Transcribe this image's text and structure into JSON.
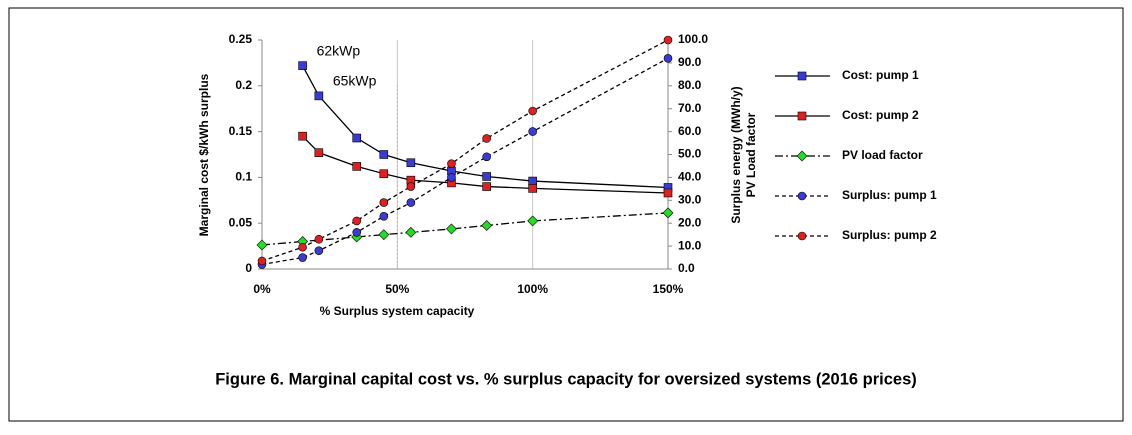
{
  "chart_data": {
    "type": "line",
    "caption": "Figure 6. Marginal capital cost vs. % surplus capacity for oversized systems (2016 prices)",
    "xlabel": "% Surplus system capacity",
    "ylabel": "Marginal cost $/kWh surplus",
    "y2label": [
      "Surplus energy (MWh/y)",
      "PV Load factor"
    ],
    "annotations": [
      {
        "text": "62kWp",
        "x": 15,
        "y": 0.222
      },
      {
        "text": "65kWp",
        "x": 21,
        "y": 0.189
      }
    ],
    "reference_line": {
      "x": 50,
      "color": "#f0b080"
    },
    "xlim": [
      0,
      150
    ],
    "xticks": [
      {
        "value": 0,
        "label": "0%"
      },
      {
        "value": 50,
        "label": "50%"
      },
      {
        "value": 100,
        "label": "100%"
      },
      {
        "value": 150,
        "label": "150%"
      }
    ],
    "ylim": [
      0,
      0.25
    ],
    "yticks": [
      0,
      0.05,
      0.1,
      0.15,
      0.2,
      0.25
    ],
    "y2lim": [
      0,
      100
    ],
    "y2ticks": [
      {
        "value": 0,
        "label": "0.0"
      },
      {
        "value": 10,
        "label": "10.0"
      },
      {
        "value": 20,
        "label": "20.0"
      },
      {
        "value": 30,
        "label": "30.0"
      },
      {
        "value": 40,
        "label": "40.0"
      },
      {
        "value": 50,
        "label": "50.0"
      },
      {
        "value": 60,
        "label": "60.0"
      },
      {
        "value": 70,
        "label": "70.0"
      },
      {
        "value": 80,
        "label": "80.0"
      },
      {
        "value": 90,
        "label": "90.0"
      },
      {
        "value": 100,
        "label": "100.0"
      }
    ],
    "grid": "x",
    "series": [
      {
        "name": "Cost: pump 1",
        "color": "#3a3ad8",
        "marker": "square",
        "dash": "solid",
        "x": [
          15,
          21,
          35,
          45,
          55,
          70,
          83,
          100,
          150
        ],
        "values": [
          0.222,
          0.189,
          0.143,
          0.125,
          0.116,
          0.107,
          0.101,
          0.096,
          0.089
        ]
      },
      {
        "name": "Cost: pump 2",
        "color": "#e02020",
        "marker": "square",
        "dash": "solid",
        "x": [
          15,
          21,
          35,
          45,
          55,
          70,
          83,
          100,
          150
        ],
        "values": [
          0.145,
          0.127,
          0.112,
          0.104,
          0.097,
          0.094,
          0.09,
          0.088,
          0.083
        ]
      },
      {
        "name": "PV load factor",
        "color": "#22dd22",
        "marker": "diamond",
        "dash": "dashdot",
        "axis": "y2",
        "x": [
          0,
          15,
          35,
          45,
          55,
          70,
          83,
          100,
          150
        ],
        "values": [
          10.5,
          12,
          14,
          15,
          16,
          17.5,
          19,
          21,
          24.5
        ]
      },
      {
        "name": "Surplus: pump 1",
        "color": "#3a3ad8",
        "marker": "circle",
        "dash": "dashed",
        "axis": "y2",
        "x": [
          0,
          15,
          21,
          35,
          45,
          55,
          70,
          83,
          100,
          150
        ],
        "values": [
          2,
          5,
          8,
          16,
          23,
          29,
          40,
          49,
          60,
          92
        ]
      },
      {
        "name": "Surplus: pump 2",
        "color": "#e02020",
        "marker": "circle",
        "dash": "dashed",
        "axis": "y2",
        "x": [
          0,
          15,
          21,
          35,
          45,
          55,
          70,
          83,
          100,
          150
        ],
        "values": [
          3.5,
          9.5,
          13,
          21,
          29,
          36,
          46,
          57,
          69,
          100
        ]
      }
    ]
  }
}
